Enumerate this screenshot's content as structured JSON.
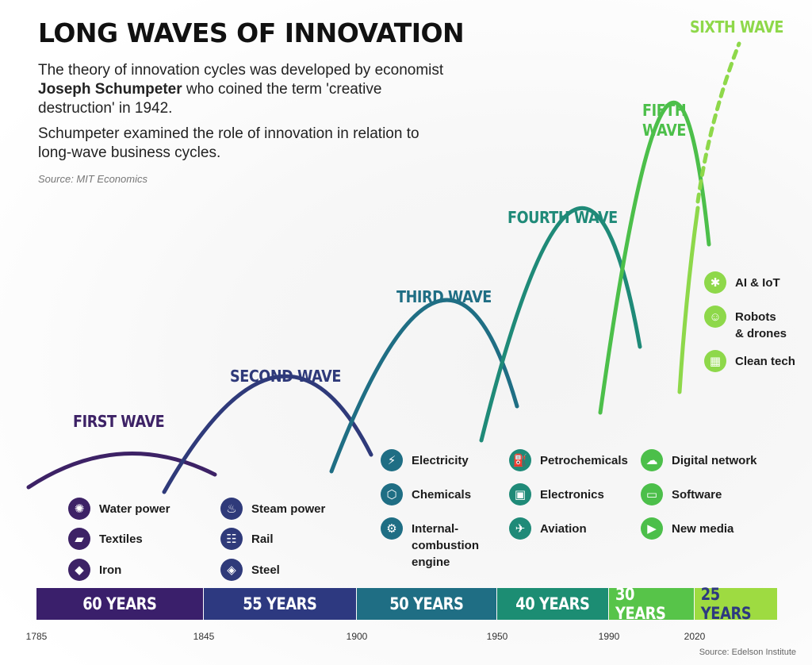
{
  "title": "LONG WAVES OF INNOVATION",
  "intro": {
    "line1_pre": "The theory of innovation cycles was developed by economist ",
    "line1_bold": "Joseph Schumpeter",
    "line1_post": " who coined the term 'creative destruction' in 1942.",
    "line2": "Schumpeter examined the role of innovation in relation to long-wave business cycles."
  },
  "source_top": "Source: MIT Economics",
  "source_bottom": "Source: Edelson Institute",
  "waves": [
    {
      "label": "FIRST WAVE",
      "color": "#3d2266"
    },
    {
      "label": "SECOND WAVE",
      "color": "#2f3a7a"
    },
    {
      "label": "THIRD WAVE",
      "color": "#1f6e84"
    },
    {
      "label": "FOURTH WAVE",
      "color": "#1f8a78"
    },
    {
      "label": "FIFTH WAVE",
      "color": "#4cbf4a"
    },
    {
      "label": "SIXTH WAVE",
      "color": "#8ed84a"
    }
  ],
  "techs": {
    "w1": [
      {
        "label": "Water power",
        "icon": "water-wheel-icon",
        "glyph": "✺"
      },
      {
        "label": "Textiles",
        "icon": "textile-icon",
        "glyph": "▰"
      },
      {
        "label": "Iron",
        "icon": "iron-ingot-icon",
        "glyph": "◆"
      }
    ],
    "w2": [
      {
        "label": "Steam power",
        "icon": "steam-train-icon",
        "glyph": "♨"
      },
      {
        "label": "Rail",
        "icon": "rail-track-icon",
        "glyph": "☷"
      },
      {
        "label": "Steel",
        "icon": "steel-beam-icon",
        "glyph": "◈"
      }
    ],
    "w3": [
      {
        "label": "Electricity",
        "icon": "lightning-icon",
        "glyph": "⚡"
      },
      {
        "label": "Chemicals",
        "icon": "molecule-icon",
        "glyph": "⬡"
      },
      {
        "label": "Internal-\ncombustion\nengine",
        "icon": "engine-icon",
        "glyph": "⚙"
      }
    ],
    "w4": [
      {
        "label": "Petrochemicals",
        "icon": "refinery-icon",
        "glyph": "⛽"
      },
      {
        "label": "Electronics",
        "icon": "chip-icon",
        "glyph": "▣"
      },
      {
        "label": "Aviation",
        "icon": "airplane-icon",
        "glyph": "✈"
      }
    ],
    "w5": [
      {
        "label": "Digital network",
        "icon": "cloud-network-icon",
        "glyph": "☁"
      },
      {
        "label": "Software",
        "icon": "laptop-icon",
        "glyph": "▭"
      },
      {
        "label": "New media",
        "icon": "media-player-icon",
        "glyph": "▶"
      }
    ],
    "w6": [
      {
        "label": "AI & IoT",
        "icon": "brain-icon",
        "glyph": "✱"
      },
      {
        "label": "Robots\n& drones",
        "icon": "robot-icon",
        "glyph": "☺"
      },
      {
        "label": "Clean tech",
        "icon": "solar-panel-icon",
        "glyph": "▦"
      }
    ]
  },
  "durations": [
    {
      "label": "60 YEARS",
      "color": "#3a1f6b"
    },
    {
      "label": "55 YEARS",
      "color": "#2d3980"
    },
    {
      "label": "50 YEARS",
      "color": "#1f6e84"
    },
    {
      "label": "40 YEARS",
      "color": "#1c8d73"
    },
    {
      "label": "30 YEARS",
      "color": "#57c449"
    },
    {
      "label": "25 YEARS",
      "color": "#9edb41",
      "text_color": "#2d3980"
    }
  ],
  "years": [
    "1785",
    "1845",
    "1900",
    "1950",
    "1990",
    "2020"
  ]
}
